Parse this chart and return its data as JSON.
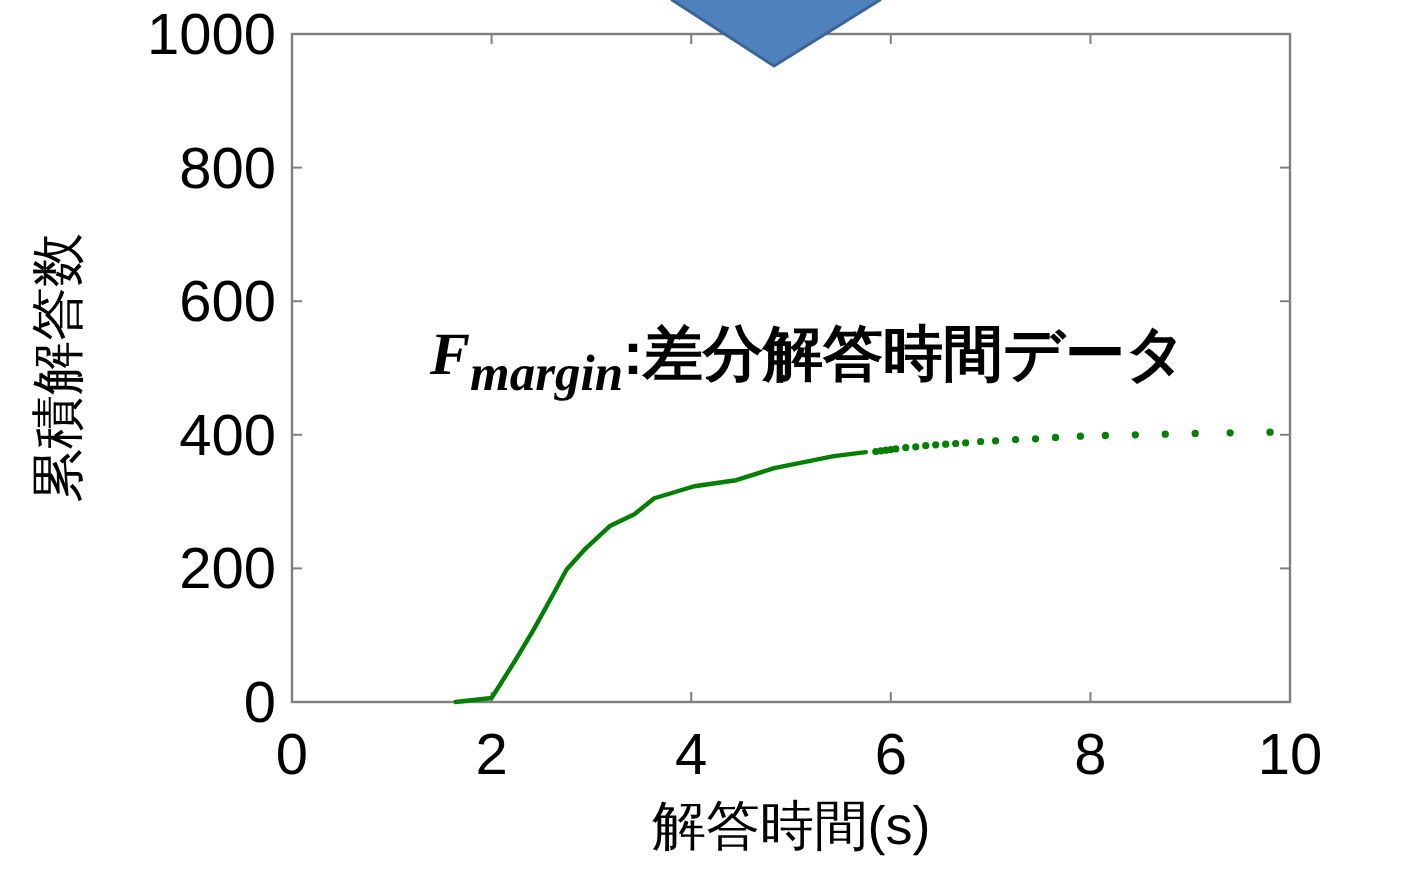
{
  "chart_data": {
    "type": "line",
    "xlabel": "解答時間(s)",
    "ylabel": "累積解答数",
    "annotations": [
      "F$_{margin}$:差分解答時間データ"
    ],
    "xlim": [
      0,
      10
    ],
    "ylim": [
      0,
      1000
    ],
    "xticks": [
      0,
      2,
      4,
      6,
      8,
      10
    ],
    "yticks": [
      0,
      200,
      400,
      600,
      800,
      1000
    ],
    "grid": false,
    "series": [
      {
        "color": "#008000",
        "line_style": "solid",
        "x": [
          1.64,
          2.0,
          2.24,
          2.42,
          2.62,
          2.75,
          2.93,
          3.19,
          3.43,
          3.63,
          4.03,
          4.45,
          4.83,
          5.43,
          5.75
        ],
        "values": [
          0,
          6,
          63,
          108,
          162,
          198,
          228,
          264,
          281,
          305,
          323,
          332,
          350,
          368,
          374
        ]
      },
      {
        "type": "scatter",
        "color": "#008000",
        "marker": "circle",
        "x": [
          5.85,
          5.9,
          5.95,
          6.0,
          6.05,
          6.15,
          6.25,
          6.35,
          6.45,
          6.55,
          6.65,
          6.75,
          6.9,
          7.05,
          7.25,
          7.45,
          7.65,
          7.9,
          8.15,
          8.45,
          8.75,
          9.05,
          9.4,
          9.8
        ],
        "values": [
          375,
          376,
          377,
          378,
          379,
          381,
          382,
          384,
          385,
          386,
          387,
          388,
          390,
          391,
          393,
          394,
          396,
          398,
          399,
          400,
          401,
          402,
          403,
          404
        ]
      }
    ]
  }
}
